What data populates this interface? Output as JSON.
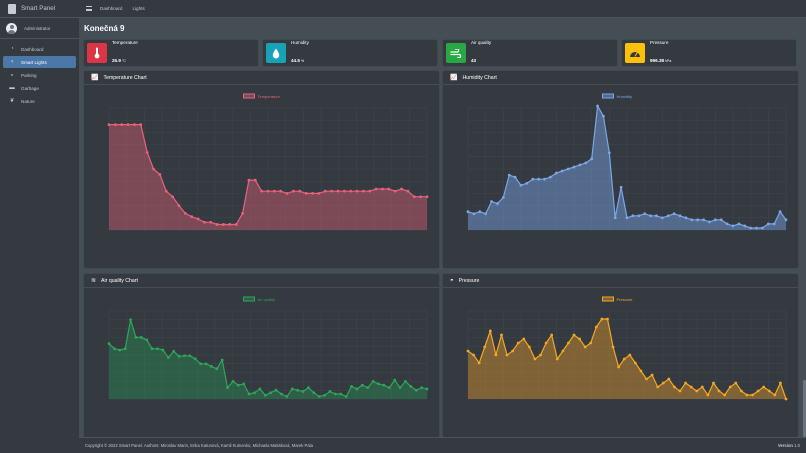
{
  "brand": {
    "name": "Smart Panel"
  },
  "user": {
    "name": "Administrator"
  },
  "sidebar": {
    "items": [
      {
        "label": "Dashboard",
        "icon": "dashboard-icon",
        "active": false
      },
      {
        "label": "Smart Lights",
        "icon": "lightbulb-icon",
        "active": true
      },
      {
        "label": "Parking",
        "icon": "car-icon",
        "active": false
      },
      {
        "label": "Garbage",
        "icon": "trash-icon",
        "active": false
      },
      {
        "label": "Nature",
        "icon": "leaf-icon",
        "active": false
      }
    ]
  },
  "header": {
    "links": [
      "Dashboard",
      "Lights"
    ]
  },
  "page": {
    "title": "Konečná 9"
  },
  "info_boxes": [
    {
      "label": "Temperature",
      "value": "25.9",
      "unit": "°C",
      "icon": "thermometer-icon",
      "color": "#dc3545"
    },
    {
      "label": "Humidity",
      "value": "44.5",
      "unit": "%",
      "icon": "droplet-icon",
      "color": "#17a2b8"
    },
    {
      "label": "Air quality",
      "value": "43",
      "unit": "",
      "icon": "wind-icon",
      "color": "#28a745"
    },
    {
      "label": "Pressure",
      "value": "996.38",
      "unit": "hPa",
      "icon": "gauge-icon",
      "color": "#ffc107"
    }
  ],
  "cards": [
    {
      "title": "Temperature Chart",
      "icon": "chart-icon"
    },
    {
      "title": "Humidity Chart",
      "icon": "chart-icon"
    },
    {
      "title": "Air quality Chart",
      "icon": "wind-icon"
    },
    {
      "title": "Pressure",
      "icon": "gauge-icon"
    }
  ],
  "chart_data": [
    {
      "type": "area",
      "title": "Temperature Chart",
      "color": "#e8627a",
      "fill": "rgba(232,98,122,0.4)",
      "series": [
        {
          "name": "Temperature",
          "values": [
            26.45,
            26.45,
            26.45,
            26.45,
            26.45,
            26.45,
            26.2,
            26.05,
            26.0,
            25.85,
            25.8,
            25.72,
            25.65,
            25.62,
            25.6,
            25.57,
            25.57,
            25.55,
            25.55,
            25.55,
            25.55,
            25.65,
            25.95,
            25.95,
            25.85,
            25.85,
            25.85,
            25.85,
            25.83,
            25.85,
            25.85,
            25.83,
            25.83,
            25.83,
            25.85,
            25.85,
            25.85,
            25.85,
            25.85,
            25.85,
            25.85,
            25.85,
            25.87,
            25.87,
            25.87,
            25.85,
            25.87,
            25.85,
            25.8,
            25.8,
            25.8
          ]
        }
      ],
      "ylim": [
        25.5,
        26.6
      ]
    },
    {
      "type": "area",
      "title": "Humidity Chart",
      "color": "#7aa6e8",
      "fill": "rgba(122,166,232,0.45)",
      "series": [
        {
          "name": "Humidity",
          "values": [
            44.9,
            44.8,
            44.9,
            44.8,
            45.4,
            45.3,
            45.6,
            46.7,
            46.6,
            46.2,
            46.3,
            46.5,
            46.5,
            46.5,
            46.6,
            46.8,
            46.9,
            47.0,
            47.1,
            47.2,
            47.3,
            47.5,
            50.1,
            49.6,
            47.8,
            44.6,
            46.1,
            44.6,
            44.7,
            44.7,
            44.8,
            44.7,
            44.7,
            44.6,
            44.7,
            44.8,
            44.7,
            44.6,
            44.5,
            44.5,
            44.5,
            44.4,
            44.5,
            44.5,
            44.3,
            44.2,
            44.3,
            44.2,
            44.1,
            44.1,
            44.1,
            44.3,
            44.3,
            44.9,
            44.5
          ]
        }
      ],
      "ylim": [
        44,
        50
      ]
    },
    {
      "type": "area",
      "title": "Air quality Chart",
      "color": "#2ea55a",
      "fill": "rgba(40,140,80,0.45)",
      "series": [
        {
          "name": "Air quality",
          "values": [
            220,
            200,
            195,
            200,
            315,
            245,
            245,
            235,
            200,
            200,
            195,
            165,
            190,
            170,
            172,
            172,
            160,
            140,
            140,
            130,
            120,
            155,
            45,
            70,
            55,
            60,
            20,
            25,
            40,
            15,
            25,
            35,
            20,
            10,
            40,
            35,
            30,
            45,
            25,
            10,
            15,
            30,
            20,
            20,
            10,
            50,
            40,
            55,
            45,
            70,
            60,
            55,
            45,
            75,
            45,
            70,
            50,
            35,
            45,
            40
          ]
        }
      ],
      "ylim": [
        0,
        350
      ]
    },
    {
      "type": "area",
      "title": "Pressure",
      "color": "#f5a623",
      "fill": "rgba(240,160,40,0.4)",
      "series": [
        {
          "name": "Pressure",
          "values": [
            996.7,
            996.6,
            996.4,
            996.8,
            997.2,
            996.6,
            997.1,
            996.6,
            996.7,
            996.9,
            997.0,
            996.8,
            996.5,
            996.6,
            996.9,
            997.1,
            996.5,
            996.7,
            996.9,
            997.1,
            997.0,
            996.8,
            996.9,
            997.3,
            997.5,
            997.5,
            996.8,
            996.3,
            996.5,
            996.6,
            996.4,
            996.2,
            996.0,
            996.1,
            995.8,
            995.9,
            996.0,
            995.8,
            995.7,
            995.9,
            995.8,
            995.7,
            995.8,
            995.6,
            995.9,
            995.7,
            995.6,
            995.8,
            995.9,
            995.7,
            995.6,
            995.6,
            995.7,
            995.8,
            995.7,
            995.6,
            995.9,
            995.5
          ]
        }
      ],
      "ylim": [
        995.5,
        997.7
      ]
    }
  ],
  "footer": {
    "text": "Copyright © 2022 Smart Panel. Authors: Miroslav Marin, Erika Katunová, Kamil Kutnenko, Michaela Matisková, Marek Pala",
    "version_label": "Version",
    "version": "1.0"
  }
}
